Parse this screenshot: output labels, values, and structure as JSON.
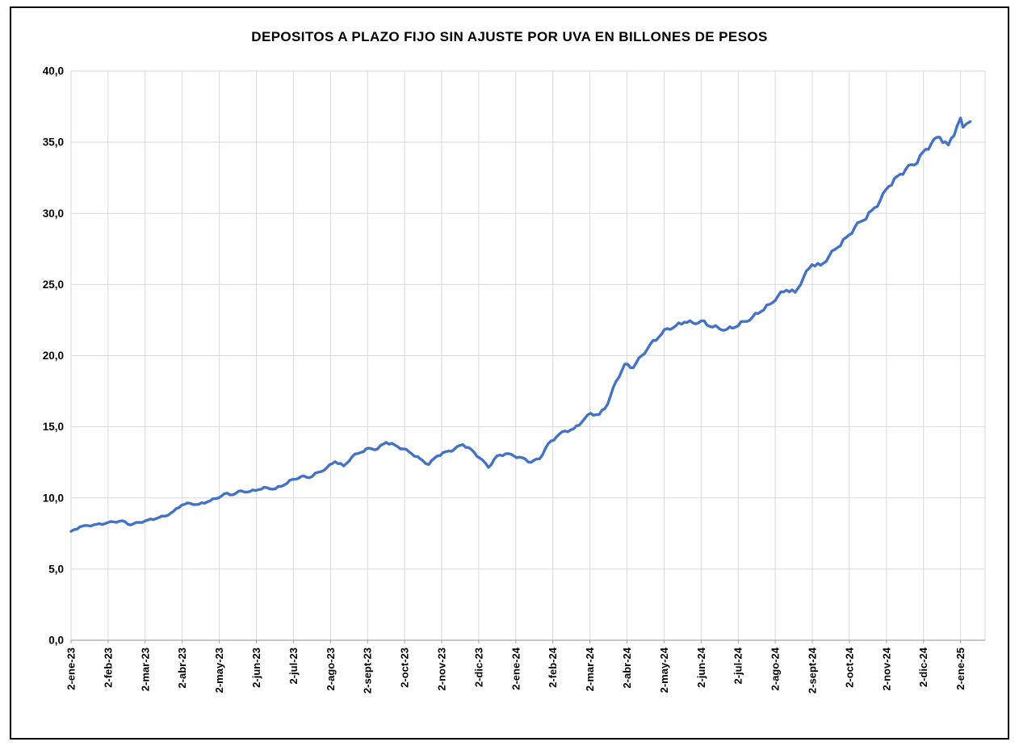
{
  "window": {
    "background": "#ffffff",
    "frame_border_color": "#000000"
  },
  "chart_data": {
    "type": "line",
    "title": "DEPOSITOS A PLAZO FIJO SIN AJUSTE POR UVA EN BILLONES DE PESOS",
    "xlabel": "",
    "ylabel": "",
    "ylim": [
      0,
      40
    ],
    "ytick_step": 5,
    "ytick_labels": [
      "0,0",
      "5,0",
      "10,0",
      "15,0",
      "20,0",
      "25,0",
      "30,0",
      "35,0",
      "40,0"
    ],
    "xtick_labels": [
      "2-ene-23",
      "2-feb-23",
      "2-mar-23",
      "2-abr-23",
      "2-may-23",
      "2-jun-23",
      "2-jul-23",
      "2-ago-23",
      "2-sept-23",
      "2-oct-23",
      "2-nov-23",
      "2-dic-23",
      "2-ene-24",
      "2-feb-24",
      "2-mar-24",
      "2-abr-24",
      "2-may-24",
      "2-jun-24",
      "2-jul-24",
      "2-ago-24",
      "2-sept-24",
      "2-oct-24",
      "2-nov-24",
      "2-dic-24",
      "2-ene-25"
    ],
    "grid": true,
    "legend": "none",
    "line_color": "#4472C4",
    "gridline_color": "#D9D9D9",
    "axis_color": "#A6A6A6",
    "text_color": "#000000",
    "series": [
      {
        "dates": [
          "2023-01-02",
          "2023-01-09",
          "2023-01-16",
          "2023-01-23",
          "2023-01-30",
          "2023-02-06",
          "2023-02-13",
          "2023-02-20",
          "2023-02-27",
          "2023-03-06",
          "2023-03-13",
          "2023-03-20",
          "2023-03-27",
          "2023-04-03",
          "2023-04-10",
          "2023-04-17",
          "2023-04-24",
          "2023-05-01",
          "2023-05-08",
          "2023-05-15",
          "2023-05-22",
          "2023-05-29",
          "2023-06-05",
          "2023-06-12",
          "2023-06-19",
          "2023-06-26",
          "2023-07-03",
          "2023-07-10",
          "2023-07-17",
          "2023-07-24",
          "2023-07-31",
          "2023-08-07",
          "2023-08-14",
          "2023-08-21",
          "2023-08-28",
          "2023-09-04",
          "2023-09-11",
          "2023-09-18",
          "2023-09-25",
          "2023-10-02",
          "2023-10-09",
          "2023-10-16",
          "2023-10-23",
          "2023-10-30",
          "2023-11-06",
          "2023-11-13",
          "2023-11-20",
          "2023-11-27",
          "2023-12-04",
          "2023-12-11",
          "2023-12-18",
          "2023-12-25",
          "2024-01-01",
          "2024-01-08",
          "2024-01-15",
          "2024-01-22",
          "2024-01-29",
          "2024-02-05",
          "2024-02-12",
          "2024-02-19",
          "2024-02-26",
          "2024-03-04",
          "2024-03-11",
          "2024-03-18",
          "2024-03-25",
          "2024-04-01",
          "2024-04-08",
          "2024-04-15",
          "2024-04-22",
          "2024-04-29",
          "2024-05-06",
          "2024-05-13",
          "2024-05-20",
          "2024-05-27",
          "2024-06-03",
          "2024-06-10",
          "2024-06-17",
          "2024-06-24",
          "2024-07-01",
          "2024-07-08",
          "2024-07-15",
          "2024-07-22",
          "2024-07-29",
          "2024-08-05",
          "2024-08-12",
          "2024-08-19",
          "2024-08-26",
          "2024-09-02",
          "2024-09-09",
          "2024-09-16",
          "2024-09-23",
          "2024-09-30",
          "2024-10-07",
          "2024-10-14",
          "2024-10-21",
          "2024-10-28",
          "2024-11-04",
          "2024-11-11",
          "2024-11-18",
          "2024-11-25",
          "2024-12-02",
          "2024-12-09",
          "2024-12-16",
          "2024-12-23",
          "2024-12-30",
          "2025-01-02",
          "2025-01-04",
          "2025-01-07",
          "2025-01-10"
        ],
        "values": [
          7.65,
          7.95,
          8.05,
          8.15,
          8.2,
          8.32,
          8.4,
          8.1,
          8.28,
          8.45,
          8.55,
          8.72,
          9.05,
          9.5,
          9.62,
          9.55,
          9.72,
          9.95,
          10.3,
          10.22,
          10.5,
          10.45,
          10.58,
          10.72,
          10.65,
          10.9,
          11.3,
          11.5,
          11.42,
          11.8,
          12.1,
          12.55,
          12.25,
          12.9,
          13.2,
          13.5,
          13.45,
          13.9,
          13.72,
          13.45,
          13.1,
          12.75,
          12.35,
          12.95,
          13.25,
          13.42,
          13.75,
          13.4,
          12.8,
          12.15,
          12.95,
          13.1,
          12.95,
          12.82,
          12.5,
          12.75,
          13.8,
          14.3,
          14.7,
          14.85,
          15.35,
          15.95,
          15.85,
          16.6,
          18.2,
          19.4,
          19.15,
          20.0,
          20.8,
          21.3,
          21.9,
          22.1,
          22.35,
          22.3,
          22.45,
          22.05,
          21.95,
          21.85,
          22.0,
          22.4,
          22.7,
          23.1,
          23.6,
          24.2,
          24.6,
          24.45,
          25.5,
          26.4,
          26.35,
          27.0,
          27.6,
          28.3,
          29.0,
          29.5,
          30.2,
          30.9,
          31.9,
          32.6,
          33.1,
          33.4,
          34.3,
          34.9,
          35.35,
          34.8,
          36.1,
          36.7,
          36.05,
          36.3,
          36.45
        ]
      }
    ]
  }
}
